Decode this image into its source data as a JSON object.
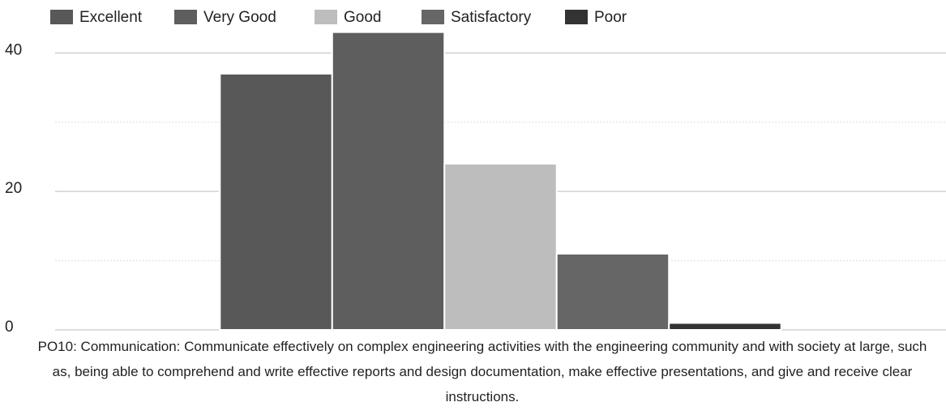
{
  "chart_data": {
    "type": "bar",
    "categories": [
      "PO10: Communication: Communicate effectively on complex engineering activities with the engineering community and with society at large, such as, being able to comprehend and write effective reports and design documentation, make effective presentations, and give and receive clear instructions."
    ],
    "series": [
      {
        "name": "Excellent",
        "color": "#585858",
        "values": [
          37
        ]
      },
      {
        "name": "Very Good",
        "color": "#5e5e5e",
        "values": [
          43
        ]
      },
      {
        "name": "Good",
        "color": "#bdbdbd",
        "values": [
          24
        ]
      },
      {
        "name": "Satisfactory",
        "color": "#666666",
        "values": [
          11
        ]
      },
      {
        "name": "Poor",
        "color": "#333333",
        "values": [
          1
        ]
      }
    ],
    "ylim": [
      0,
      46
    ],
    "yticks": [
      0,
      20,
      40
    ],
    "minor_grid": [
      10,
      30
    ],
    "grid": true,
    "legend": "top"
  }
}
